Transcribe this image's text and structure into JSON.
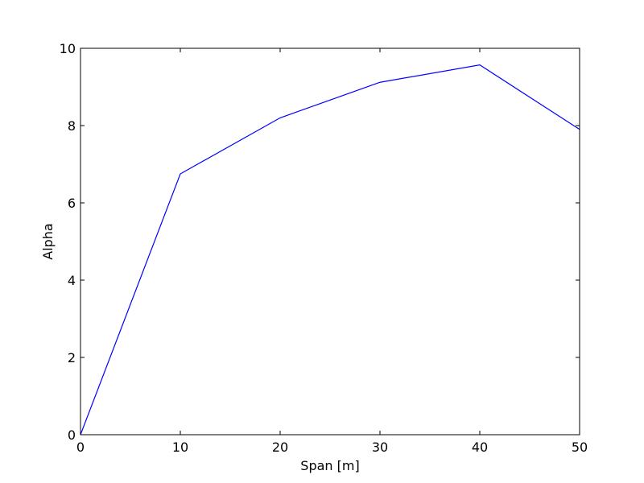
{
  "chart_data": {
    "type": "line",
    "title": "",
    "xlabel": "Span [m]",
    "ylabel": "Alpha",
    "xlim": [
      0,
      50
    ],
    "ylim": [
      0,
      10
    ],
    "x_ticks": [
      "0",
      "10",
      "20",
      "30",
      "40",
      "50"
    ],
    "y_ticks": [
      "0",
      "2",
      "4",
      "6",
      "8",
      "10"
    ],
    "grid": false,
    "legend": "none",
    "series": [
      {
        "color": "#0000ff",
        "x": [
          0,
          10,
          20,
          30,
          40,
          50
        ],
        "y": [
          0.0,
          6.75,
          8.2,
          9.12,
          9.57,
          7.9
        ]
      }
    ]
  }
}
